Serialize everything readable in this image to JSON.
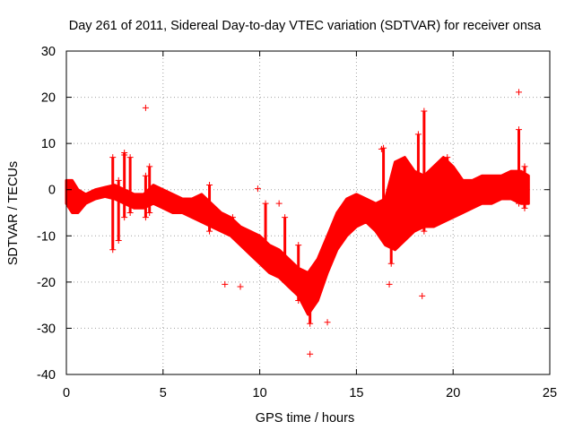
{
  "chart_data": {
    "type": "scatter",
    "title": "Day 261 of 2011, Sidereal Day-to-day VTEC variation (SDTVAR) for receiver onsa",
    "xlabel": "GPS time / hours",
    "ylabel": "SDTVAR / TECUs",
    "xlim": [
      0,
      25
    ],
    "ylim": [
      -40,
      30
    ],
    "xticks": [
      0,
      5,
      10,
      15,
      20,
      25
    ],
    "yticks": [
      -40,
      -30,
      -20,
      -10,
      0,
      10,
      20,
      30
    ],
    "grid": true,
    "marker": "+",
    "color": "#ff0000",
    "series": [
      {
        "name": "SDTVAR",
        "band_x": [
          0.0,
          0.3,
          0.6,
          1.0,
          1.5,
          2.0,
          2.5,
          3.0,
          3.5,
          4.0,
          4.5,
          5.0,
          5.5,
          6.0,
          6.5,
          7.0,
          7.5,
          8.0,
          8.5,
          9.0,
          9.5,
          10.0,
          10.5,
          11.0,
          11.5,
          12.0,
          12.5,
          13.0,
          13.5,
          14.0,
          14.5,
          15.0,
          15.5,
          16.0,
          16.5,
          17.0,
          17.5,
          18.0,
          18.5,
          19.0,
          19.5,
          20.0,
          20.5,
          21.0,
          21.5,
          22.0,
          22.5,
          23.0,
          23.5,
          23.9
        ],
        "band_lo": [
          -3,
          -5,
          -5,
          -3,
          -2,
          -1.5,
          -2,
          -3,
          -4,
          -4,
          -3,
          -4,
          -5,
          -5,
          -6,
          -7,
          -8,
          -9,
          -10,
          -12,
          -14,
          -16,
          -18,
          -19,
          -21,
          -23,
          -27,
          -24,
          -18,
          -13,
          -10,
          -8,
          -7,
          -9,
          -12,
          -13,
          -11,
          -9,
          -8,
          -8,
          -7,
          -6,
          -5,
          -4,
          -3,
          -3,
          -2,
          -2,
          -3,
          -3
        ],
        "band_hi": [
          2,
          2,
          0,
          -1,
          0,
          0.5,
          1,
          0,
          -1,
          -1,
          1,
          0,
          -1,
          -2,
          -2,
          -1,
          -3,
          -5,
          -6,
          -8,
          -9,
          -10,
          -12,
          -13,
          -15,
          -17,
          -18,
          -15,
          -10,
          -5,
          -2,
          -1,
          -2,
          -3,
          -2,
          6,
          7,
          4,
          3,
          5,
          7,
          5,
          2,
          2,
          3,
          3,
          3,
          4,
          4,
          3
        ]
      }
    ],
    "spikes": [
      {
        "x": 2.4,
        "y1": -13,
        "y2": 7
      },
      {
        "x": 2.7,
        "y1": -11,
        "y2": 2
      },
      {
        "x": 3.0,
        "y1": -6,
        "y2": 8
      },
      {
        "x": 3.3,
        "y1": -5,
        "y2": 7
      },
      {
        "x": 4.1,
        "y1": -6,
        "y2": 3
      },
      {
        "x": 4.3,
        "y1": -5,
        "y2": 5
      },
      {
        "x": 7.4,
        "y1": -9,
        "y2": 1
      },
      {
        "x": 8.6,
        "y1": -10,
        "y2": -6
      },
      {
        "x": 10.3,
        "y1": -15,
        "y2": -3
      },
      {
        "x": 11.3,
        "y1": -18,
        "y2": -6
      },
      {
        "x": 12.0,
        "y1": -24,
        "y2": -12
      },
      {
        "x": 12.6,
        "y1": -29,
        "y2": -22
      },
      {
        "x": 16.4,
        "y1": -7,
        "y2": 9
      },
      {
        "x": 16.8,
        "y1": -16,
        "y2": -5
      },
      {
        "x": 17.4,
        "y1": -7,
        "y2": 1
      },
      {
        "x": 18.2,
        "y1": -5,
        "y2": 12
      },
      {
        "x": 18.5,
        "y1": -9,
        "y2": 17
      },
      {
        "x": 19.3,
        "y1": -7,
        "y2": 5
      },
      {
        "x": 19.7,
        "y1": -6,
        "y2": 7
      },
      {
        "x": 23.4,
        "y1": -3,
        "y2": 13
      },
      {
        "x": 23.7,
        "y1": -4,
        "y2": 5
      }
    ],
    "outliers": [
      {
        "x": 4.1,
        "y": 17.7
      },
      {
        "x": 23.4,
        "y": 21.1
      },
      {
        "x": 16.3,
        "y": 8.8
      },
      {
        "x": 3.0,
        "y": 7.5
      },
      {
        "x": 9.9,
        "y": 0.2
      },
      {
        "x": 11.0,
        "y": -3.0
      },
      {
        "x": 8.2,
        "y": -20.5
      },
      {
        "x": 9.0,
        "y": -21.0
      },
      {
        "x": 12.6,
        "y": -35.6
      },
      {
        "x": 13.5,
        "y": -28.7
      },
      {
        "x": 16.7,
        "y": -20.5
      },
      {
        "x": 18.4,
        "y": -23.0
      }
    ]
  }
}
